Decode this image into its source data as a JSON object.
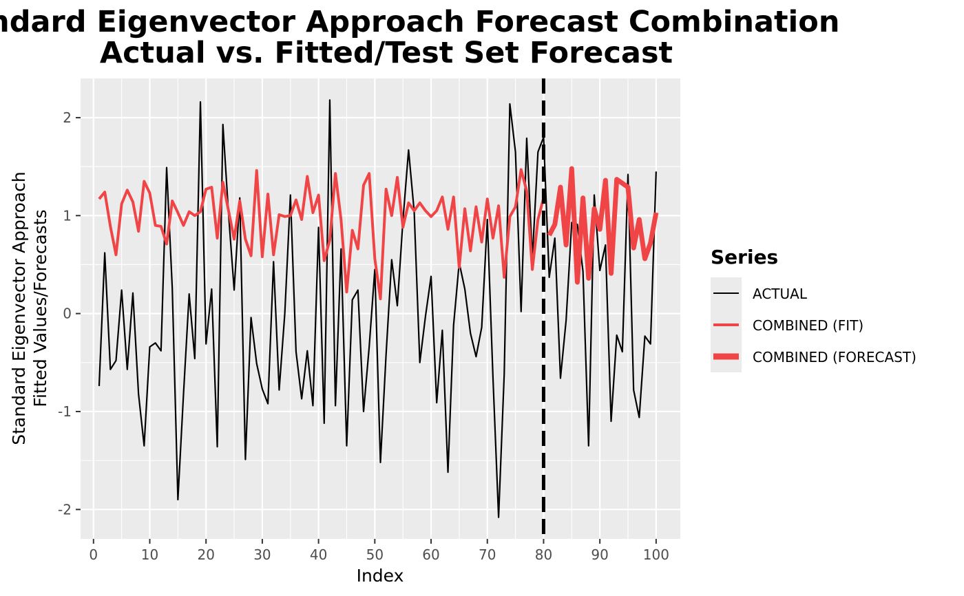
{
  "chart_data": {
    "type": "line",
    "title_line1": "Standard Eigenvector Approach Forecast Combination",
    "title_line2": "Actual vs. Fitted/Test Set Forecast",
    "xlabel": "Index",
    "ylabel_line1": "Standard Eigenvector Approach",
    "ylabel_line2": "Fitted Values/Forecasts",
    "xlim": [
      -2.3,
      104.3
    ],
    "ylim": [
      -2.3,
      2.4
    ],
    "x_ticks": [
      0,
      10,
      20,
      30,
      40,
      50,
      60,
      70,
      80,
      90,
      100
    ],
    "y_ticks": [
      2,
      1,
      0,
      -1,
      -2
    ],
    "y_tick_labels": [
      "2",
      "1",
      "0",
      "-1",
      "-2"
    ],
    "grid": true,
    "split_line_x": 80,
    "legend": {
      "title": "Series",
      "position": "right",
      "entries": [
        {
          "label": "ACTUAL",
          "color": "#000000"
        },
        {
          "label": "COMBINED (FIT)",
          "color": "#f04546"
        },
        {
          "label": "COMBINED (FORECAST)",
          "color": "#f04546"
        }
      ]
    },
    "series": [
      {
        "name": "ACTUAL",
        "color": "#000000",
        "x": [
          1,
          2,
          3,
          4,
          5,
          6,
          7,
          8,
          9,
          10,
          11,
          12,
          13,
          14,
          15,
          16,
          17,
          18,
          19,
          20,
          21,
          22,
          23,
          24,
          25,
          26,
          27,
          28,
          29,
          30,
          31,
          32,
          33,
          34,
          35,
          36,
          37,
          38,
          39,
          40,
          41,
          42,
          43,
          44,
          45,
          46,
          47,
          48,
          49,
          50,
          51,
          52,
          53,
          54,
          55,
          56,
          57,
          58,
          59,
          60,
          61,
          62,
          63,
          64,
          65,
          66,
          67,
          68,
          69,
          70,
          71,
          72,
          73,
          74,
          75,
          76,
          77,
          78,
          79,
          80,
          81,
          82,
          83,
          84,
          85,
          86,
          87,
          88,
          89,
          90,
          91,
          92,
          93,
          94,
          95,
          96,
          97,
          98,
          99,
          100
        ],
        "values": [
          -0.74,
          0.62,
          -0.57,
          -0.48,
          0.24,
          -0.57,
          0.21,
          -0.82,
          -1.35,
          -0.34,
          -0.3,
          -0.38,
          1.49,
          0.26,
          -1.9,
          -0.82,
          0.2,
          -0.46,
          2.16,
          -0.31,
          0.25,
          -1.36,
          1.93,
          1.02,
          0.24,
          1.18,
          -1.49,
          -0.04,
          -0.51,
          -0.77,
          -0.92,
          0.53,
          -0.78,
          0.0,
          1.21,
          -0.39,
          -0.87,
          -0.38,
          -0.94,
          0.88,
          -1.12,
          2.18,
          -0.94,
          0.66,
          -1.35,
          0.14,
          0.24,
          -1.0,
          -0.34,
          0.45,
          -1.52,
          -0.42,
          0.55,
          0.08,
          0.95,
          1.67,
          1.04,
          -0.5,
          -0.03,
          0.38,
          -0.91,
          -0.17,
          -1.62,
          -0.12,
          0.52,
          0.25,
          -0.2,
          -0.44,
          -0.14,
          0.96,
          -0.65,
          -2.08,
          -0.62,
          2.14,
          1.65,
          0.02,
          1.79,
          0.56,
          1.65,
          1.8,
          0.37,
          0.77,
          -0.66,
          -0.07,
          0.93,
          0.91,
          0.43,
          -1.35,
          1.21,
          0.44,
          0.7,
          -1.1,
          -0.22,
          -0.39,
          1.42,
          -0.78,
          -1.06,
          -0.23,
          -0.31,
          1.45
        ]
      },
      {
        "name": "COMBINED (FIT)",
        "color": "#f04546",
        "x": [
          1,
          2,
          3,
          4,
          5,
          6,
          7,
          8,
          9,
          10,
          11,
          12,
          13,
          14,
          15,
          16,
          17,
          18,
          19,
          20,
          21,
          22,
          23,
          24,
          25,
          26,
          27,
          28,
          29,
          30,
          31,
          32,
          33,
          34,
          35,
          36,
          37,
          38,
          39,
          40,
          41,
          42,
          43,
          44,
          45,
          46,
          47,
          48,
          49,
          50,
          51,
          52,
          53,
          54,
          55,
          56,
          57,
          58,
          59,
          60,
          61,
          62,
          63,
          64,
          65,
          66,
          67,
          68,
          69,
          70,
          71,
          72,
          73,
          74,
          75,
          76,
          77,
          78,
          79,
          80
        ],
        "values": [
          1.17,
          1.24,
          0.89,
          0.6,
          1.12,
          1.26,
          1.14,
          0.84,
          1.35,
          1.23,
          0.9,
          0.89,
          0.71,
          1.15,
          1.03,
          0.9,
          1.04,
          1.0,
          1.04,
          1.27,
          1.29,
          0.77,
          1.34,
          1.05,
          0.76,
          1.15,
          0.76,
          0.59,
          1.46,
          0.58,
          1.22,
          0.6,
          1.01,
          0.99,
          1.0,
          1.16,
          0.96,
          1.4,
          1.03,
          1.21,
          0.54,
          0.75,
          1.43,
          0.96,
          0.22,
          0.85,
          0.66,
          1.31,
          1.43,
          0.56,
          0.15,
          1.27,
          1.0,
          1.39,
          0.88,
          1.13,
          1.05,
          1.13,
          1.05,
          0.99,
          1.05,
          1.19,
          0.86,
          1.19,
          0.47,
          1.07,
          0.64,
          1.09,
          0.73,
          1.17,
          0.77,
          1.1,
          0.37,
          0.99,
          1.09,
          1.47,
          1.25,
          0.45,
          0.96,
          1.18
        ]
      },
      {
        "name": "COMBINED (FORECAST)",
        "color": "#f04546",
        "x": [
          81,
          82,
          83,
          84,
          85,
          86,
          87,
          88,
          89,
          90,
          91,
          92,
          93,
          94,
          95,
          96,
          97,
          98,
          99,
          100
        ],
        "values": [
          0.8,
          0.91,
          1.29,
          0.7,
          1.48,
          0.32,
          1.18,
          0.36,
          1.07,
          0.86,
          1.36,
          0.41,
          1.37,
          1.33,
          1.29,
          0.67,
          0.96,
          0.56,
          0.72,
          1.03
        ]
      }
    ]
  }
}
